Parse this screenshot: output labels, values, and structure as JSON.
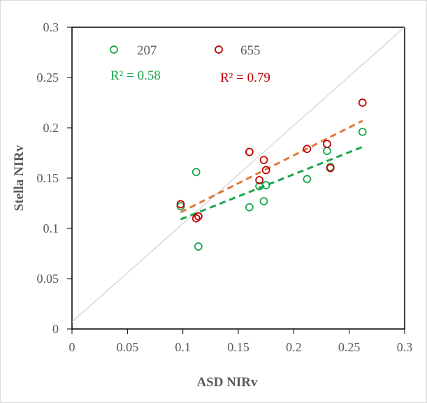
{
  "chart_data": {
    "type": "scatter",
    "title": "",
    "xlabel": "ASD NIRv",
    "ylabel": "Stella NIRv",
    "xlim": [
      0,
      0.3
    ],
    "ylim": [
      0,
      0.3
    ],
    "xticks": [
      "0",
      "0.05",
      "0.1",
      "0.15",
      "0.2",
      "0.25",
      "0.3"
    ],
    "yticks": [
      "0",
      "0.05",
      "0.1",
      "0.15",
      "0.2",
      "0.25",
      "0.3"
    ],
    "grid": false,
    "legend_position": "top-left",
    "one_to_one_line": true,
    "series": [
      {
        "name": "207",
        "color": "#1aa54a",
        "trend_color": "#1aa54a",
        "r2_label": "R² = 0.58",
        "trend": {
          "x": [
            0.098,
            0.262
          ],
          "y": [
            0.109,
            0.181
          ]
        },
        "points": [
          {
            "x": 0.098,
            "y": 0.122
          },
          {
            "x": 0.112,
            "y": 0.156
          },
          {
            "x": 0.114,
            "y": 0.082
          },
          {
            "x": 0.16,
            "y": 0.121
          },
          {
            "x": 0.169,
            "y": 0.142
          },
          {
            "x": 0.173,
            "y": 0.127
          },
          {
            "x": 0.175,
            "y": 0.143
          },
          {
            "x": 0.212,
            "y": 0.149
          },
          {
            "x": 0.23,
            "y": 0.177
          },
          {
            "x": 0.233,
            "y": 0.161
          },
          {
            "x": 0.262,
            "y": 0.196
          }
        ]
      },
      {
        "name": "655",
        "color": "#c00000",
        "trend_color": "#e07a3a",
        "r2_label": "R² = 0.79",
        "trend": {
          "x": [
            0.098,
            0.262
          ],
          "y": [
            0.116,
            0.207
          ]
        },
        "points": [
          {
            "x": 0.098,
            "y": 0.124
          },
          {
            "x": 0.112,
            "y": 0.11
          },
          {
            "x": 0.114,
            "y": 0.112
          },
          {
            "x": 0.16,
            "y": 0.176
          },
          {
            "x": 0.169,
            "y": 0.148
          },
          {
            "x": 0.173,
            "y": 0.168
          },
          {
            "x": 0.175,
            "y": 0.158
          },
          {
            "x": 0.212,
            "y": 0.179
          },
          {
            "x": 0.23,
            "y": 0.184
          },
          {
            "x": 0.233,
            "y": 0.16
          },
          {
            "x": 0.262,
            "y": 0.225
          }
        ]
      }
    ]
  }
}
